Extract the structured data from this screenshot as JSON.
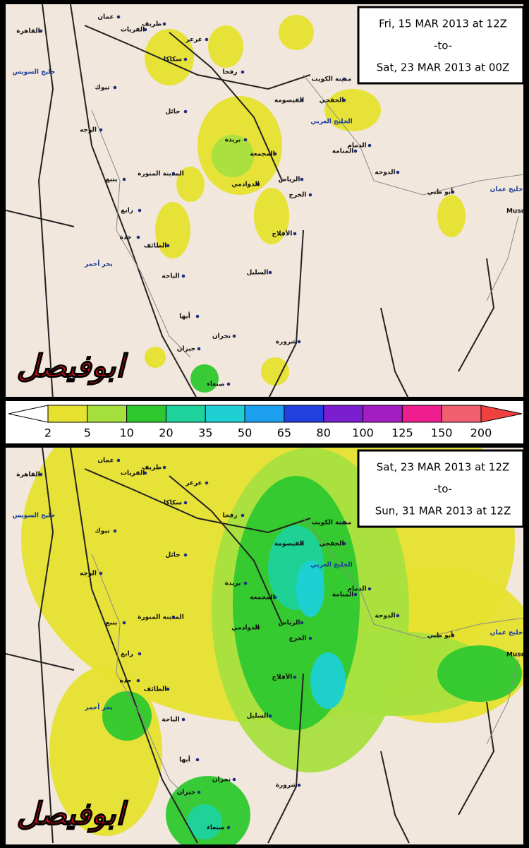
{
  "panels": [
    {
      "lines": [
        "Fri, 15 MAR 2013 at 12Z",
        "-to-",
        "Sat, 23 MAR 2013 at 00Z"
      ]
    },
    {
      "lines": [
        "Sat, 23 MAR 2013 at 12Z",
        "-to-",
        "Sun, 31 MAR 2013 at 12Z"
      ]
    }
  ],
  "places": [
    "عمان",
    "طريف",
    "القريات",
    "القاهرة",
    "عرعر",
    "سكاكا",
    "خليج السويس",
    "رفحا",
    "مدينة الكويت",
    "تبوك",
    "القيصومة",
    "الخفجي",
    "حائل",
    "الوجه",
    "الخليج العربي",
    "بريدة",
    "الدمام",
    "المنامة",
    "المجمعة",
    "المدينة المنورة",
    "الدوحة",
    "ينبع",
    "الدوادمي",
    "الرياض",
    "الخرج",
    "أبو ظبي",
    "خليج عمان",
    "Musc",
    "رابغ",
    "جدة",
    "الأفلاج",
    "الطائف",
    "بحر أحمر",
    "السليل",
    "الباحة",
    "أبها",
    "نجران",
    "شرورة",
    "جيزان",
    "صنعاء"
  ],
  "watermark": "ابوفيصل",
  "legend": {
    "labels": [
      2,
      5,
      10,
      20,
      35,
      50,
      65,
      80,
      100,
      125,
      150,
      200
    ],
    "colors": [
      "#ffffff",
      "#e6e12e",
      "#a6e03e",
      "#2ec82e",
      "#1ed29c",
      "#1ed0d4",
      "#1ea0f0",
      "#2040e0",
      "#7a1ed0",
      "#a21ec2",
      "#ee1e8e",
      "#f06070",
      "#f04040"
    ]
  }
}
